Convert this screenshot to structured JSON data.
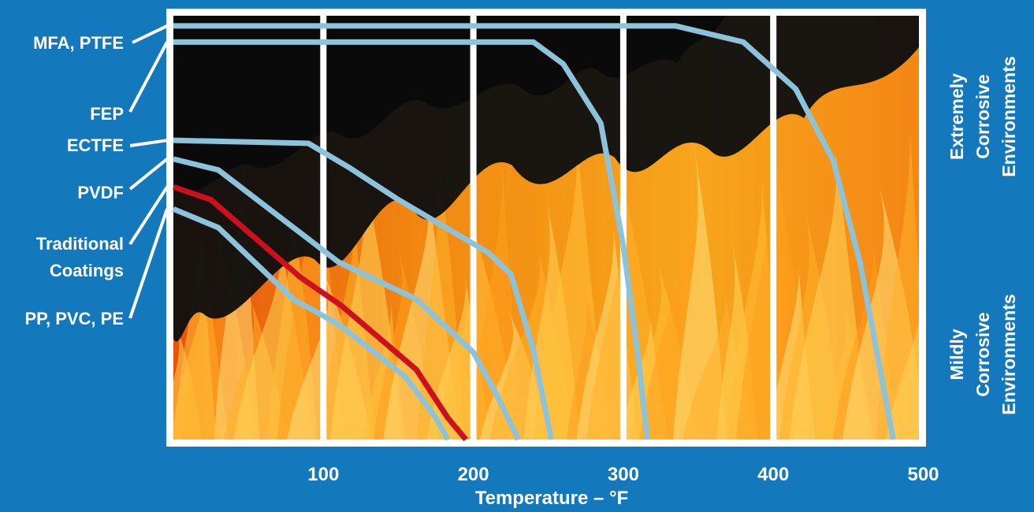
{
  "chart_data": {
    "type": "line",
    "xlabel": "Temperature – °F",
    "x_ticks": [
      100,
      200,
      300,
      400,
      500
    ],
    "xlim": [
      0,
      510
    ],
    "y_range_labels": {
      "top": [
        "Extremely",
        "Corrosive",
        "Environments"
      ],
      "bottom": [
        "Mildly",
        "Corrosive",
        "Environments"
      ]
    },
    "series": [
      {
        "name": "MFA, PTFE",
        "label_lines": [
          "MFA, PTFE"
        ],
        "color": "#8cc3db",
        "points": [
          [
            0,
            97.6
          ],
          [
            335,
            97.6
          ],
          [
            380,
            93.8
          ],
          [
            415,
            82.7
          ],
          [
            440,
            65.8
          ],
          [
            458,
            41.6
          ],
          [
            472,
            15.1
          ],
          [
            480,
            0
          ]
        ]
      },
      {
        "name": "FEP",
        "label_lines": [
          "FEP"
        ],
        "color": "#8cc3db",
        "points": [
          [
            0,
            93.8
          ],
          [
            240,
            93.8
          ],
          [
            260,
            88.6
          ],
          [
            285,
            74.6
          ],
          [
            300,
            45.7
          ],
          [
            310,
            19.1
          ],
          [
            316,
            0
          ]
        ]
      },
      {
        "name": "ECTFE",
        "label_lines": [
          "ECTFE"
        ],
        "color": "#8cc3db",
        "points": [
          [
            0,
            70.6
          ],
          [
            90,
            69.9
          ],
          [
            118,
            64.0
          ],
          [
            150,
            56.6
          ],
          [
            210,
            44.1
          ],
          [
            225,
            39.0
          ],
          [
            240,
            21.3
          ],
          [
            252,
            0
          ]
        ]
      },
      {
        "name": "PVDF",
        "label_lines": [
          "PVDF"
        ],
        "color": "#8cc3db",
        "points": [
          [
            0,
            66.2
          ],
          [
            30,
            63.6
          ],
          [
            110,
            41.9
          ],
          [
            162,
            33.1
          ],
          [
            200,
            20.6
          ],
          [
            215,
            11.0
          ],
          [
            230,
            0
          ]
        ]
      },
      {
        "name": "Traditional Coatings",
        "label_lines": [
          "Traditional",
          "Coatings"
        ],
        "color": "#cc1020",
        "points": [
          [
            0,
            59.6
          ],
          [
            25,
            56.6
          ],
          [
            85,
            38.2
          ],
          [
            112,
            31.6
          ],
          [
            162,
            16.5
          ],
          [
            183,
            5.1
          ],
          [
            195,
            0
          ]
        ]
      },
      {
        "name": "PP, PVC, PE",
        "label_lines": [
          "PP, PVC, PE"
        ],
        "color": "#8cc3db",
        "points": [
          [
            0,
            54.4
          ],
          [
            30,
            50.0
          ],
          [
            80,
            33.1
          ],
          [
            110,
            27.2
          ],
          [
            155,
            14.7
          ],
          [
            175,
            5.1
          ],
          [
            183,
            0
          ]
        ]
      }
    ]
  }
}
